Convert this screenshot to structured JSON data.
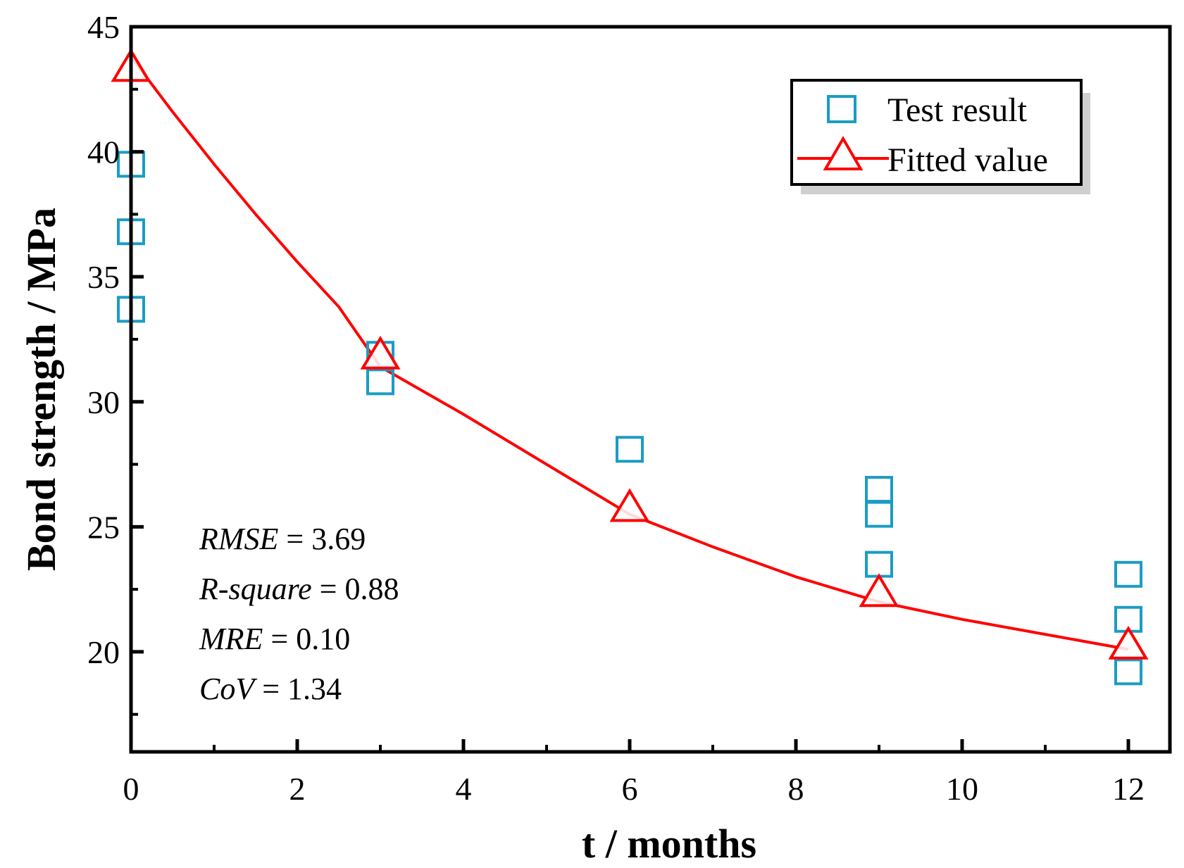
{
  "chart_data": {
    "type": "scatter",
    "xlabel": "t / months",
    "ylabel": "Bond strength / MPa",
    "xlim": [
      0,
      12.5
    ],
    "ylim": [
      16,
      45
    ],
    "xticks": [
      0,
      2,
      4,
      6,
      8,
      10,
      12
    ],
    "xtick_labels": [
      "0",
      "2",
      "4",
      "6",
      "8",
      "10",
      "12"
    ],
    "yticks": [
      20,
      25,
      30,
      35,
      40,
      45
    ],
    "ytick_labels": [
      "20",
      "25",
      "30",
      "35",
      "40",
      "45"
    ],
    "x_minor_step": 1,
    "y_minor_step": 2.5,
    "grid": false,
    "legend_position": "top-right",
    "series": [
      {
        "name": "Test result",
        "kind": "scatter",
        "marker": "square",
        "color": "#1a9cc4",
        "points": [
          [
            0,
            39.5
          ],
          [
            0,
            36.8
          ],
          [
            0,
            33.7
          ],
          [
            3,
            31.9
          ],
          [
            3,
            30.8
          ],
          [
            6,
            28.1
          ],
          [
            9,
            26.5
          ],
          [
            9,
            25.5
          ],
          [
            9,
            23.5
          ],
          [
            12,
            23.1
          ],
          [
            12,
            21.3
          ],
          [
            12,
            19.2
          ]
        ]
      },
      {
        "name": "Fitted value",
        "kind": "line",
        "marker": "triangle",
        "color": "#ff0000",
        "curve": [
          [
            0,
            43.8
          ],
          [
            0.5,
            41.6
          ],
          [
            1,
            39.5
          ],
          [
            1.5,
            37.5
          ],
          [
            2,
            35.6
          ],
          [
            2.5,
            33.8
          ],
          [
            3,
            31.4
          ],
          [
            4,
            29.5
          ],
          [
            5,
            27.5
          ],
          [
            6,
            25.5
          ],
          [
            7,
            24.2
          ],
          [
            8,
            23.0
          ],
          [
            9,
            22.0
          ],
          [
            10,
            21.3
          ],
          [
            11,
            20.7
          ],
          [
            12,
            20.1
          ]
        ],
        "points": [
          [
            0,
            43.3
          ],
          [
            3,
            31.8
          ],
          [
            6,
            25.7
          ],
          [
            9,
            22.3
          ],
          [
            12,
            20.2
          ]
        ]
      }
    ],
    "annotations": [
      {
        "italic": "RMSE",
        "rest": " = 3.69"
      },
      {
        "italic": "R-square",
        "rest": " = 0.88"
      },
      {
        "italic": "MRE",
        "rest": " = 0.10"
      },
      {
        "italic": "CoV",
        "rest": " = 1.34"
      }
    ]
  }
}
